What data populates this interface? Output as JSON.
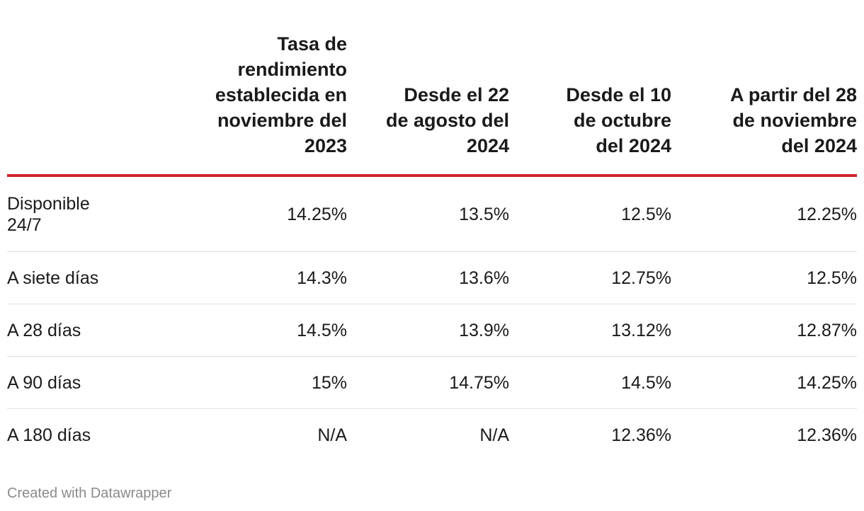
{
  "chart_data": {
    "type": "table",
    "columns": [
      "",
      "Tasa de rendimiento establecida en noviembre del 2023",
      "Desde el 22 de agosto del 2024",
      "Desde el 10 de octubre del 2024",
      "A partir del 28 de noviembre del 2024"
    ],
    "rows": [
      {
        "label": "Disponible 24/7",
        "values": [
          "14.25%",
          "13.5%",
          "12.5%",
          "12.25%"
        ]
      },
      {
        "label": "A siete días",
        "values": [
          "14.3%",
          "13.6%",
          "12.75%",
          "12.5%"
        ]
      },
      {
        "label": "A 28 días",
        "values": [
          "14.5%",
          "13.9%",
          "13.12%",
          "12.87%"
        ]
      },
      {
        "label": "A 90 días",
        "values": [
          "15%",
          "14.75%",
          "14.5%",
          "14.25%"
        ]
      },
      {
        "label": "A 180 días",
        "values": [
          "N/A",
          "N/A",
          "12.36%",
          "12.36%"
        ]
      }
    ],
    "header_rule_color": "#d0232b"
  },
  "footer": {
    "credit": "Created with Datawrapper"
  }
}
